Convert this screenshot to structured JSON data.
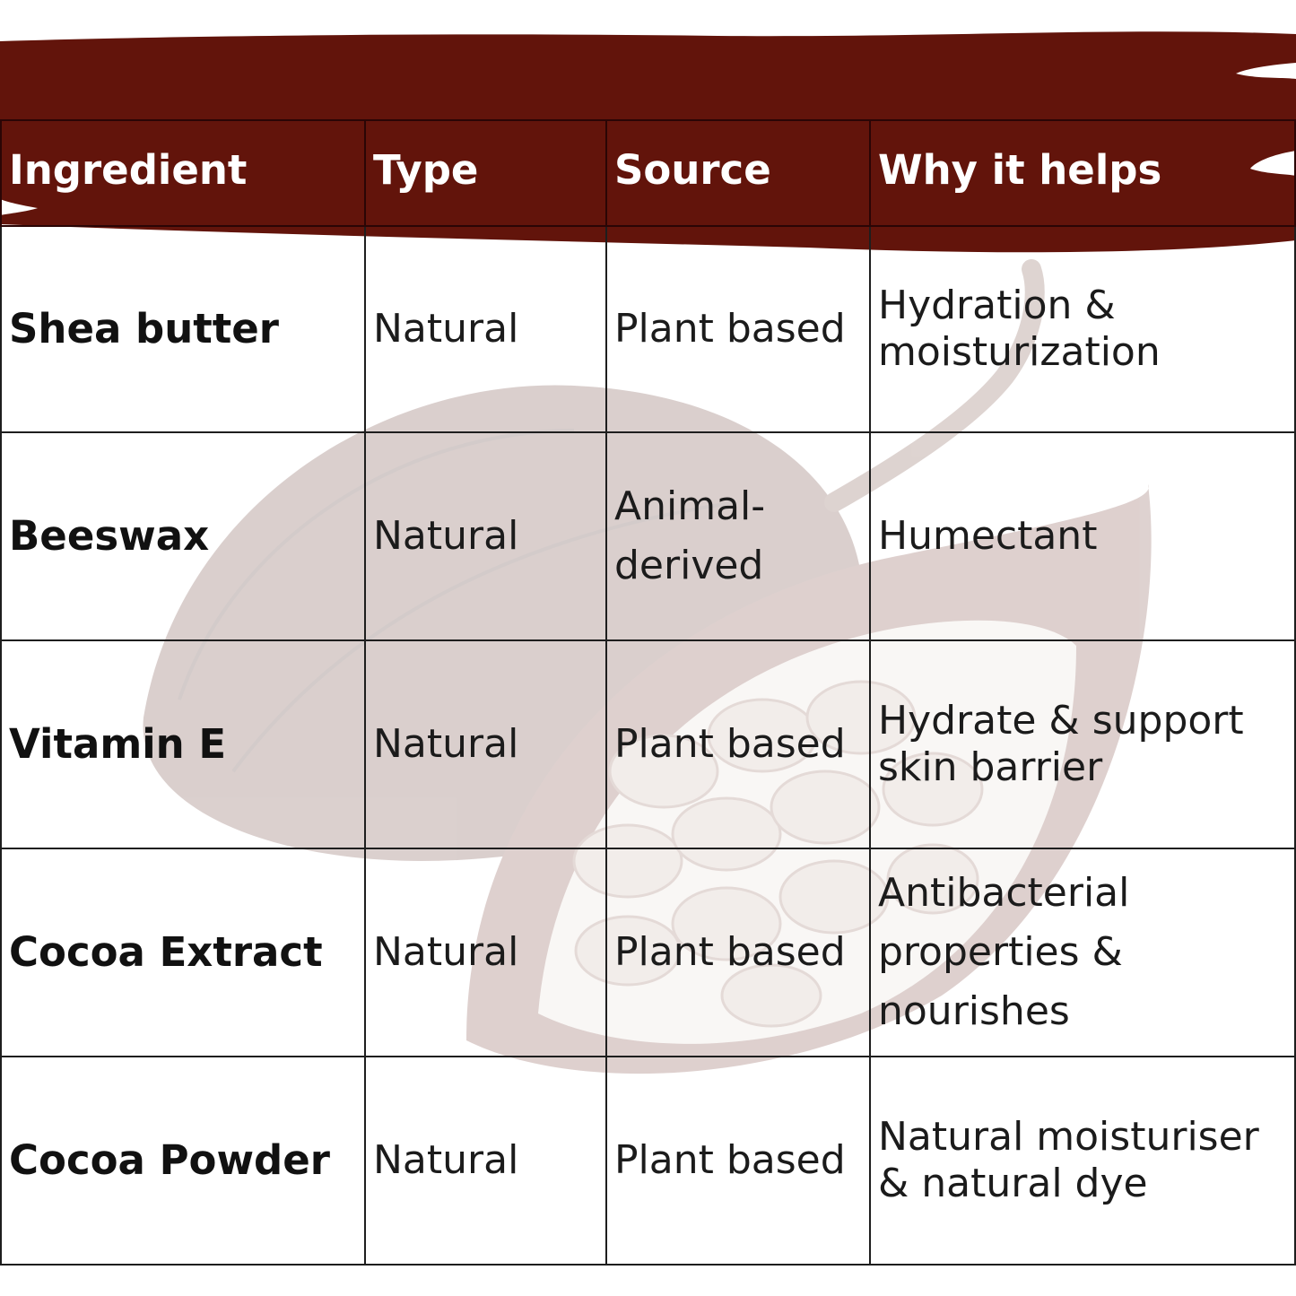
{
  "colors": {
    "header_brush": "#62140b",
    "cell_text": "#1b1b1b",
    "header_text": "#ffffff"
  },
  "background": {
    "icon": "cocoa-pod-illustration"
  },
  "table": {
    "headers": {
      "ingredient": "Ingredient",
      "type": "Type",
      "source": "Source",
      "why": "Why it helps"
    },
    "rows": [
      {
        "ingredient": "Shea butter",
        "type": "Natural",
        "source": "Plant based",
        "why": "Hydration & moisturization"
      },
      {
        "ingredient": "Beeswax",
        "type": "Natural",
        "source": "Animal-derived",
        "why": "Humectant"
      },
      {
        "ingredient": "Vitamin E",
        "type": "Natural",
        "source": "Plant based",
        "why": "Hydrate & support skin barrier"
      },
      {
        "ingredient": "Cocoa Extract",
        "type": "Natural",
        "source": "Plant based",
        "why": "Antibacterial properties & nourishes"
      },
      {
        "ingredient": "Cocoa Powder",
        "type": "Natural",
        "source": "Plant based",
        "why": "Natural moisturiser & natural dye"
      }
    ]
  }
}
